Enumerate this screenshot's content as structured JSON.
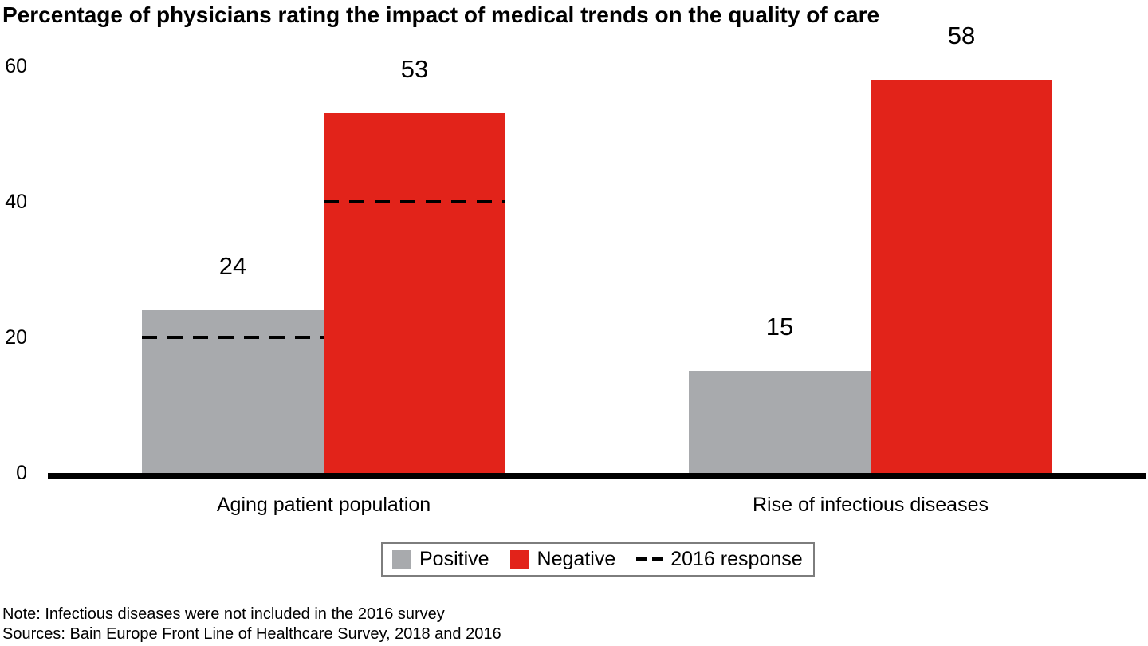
{
  "title": "Percentage of physicians rating the impact of medical trends on the quality of care",
  "colors": {
    "positive": "#a8aaad",
    "negative": "#e2231a",
    "dash": "#000000",
    "axis": "#000000",
    "legend_border": "#7d7d7d"
  },
  "legend": {
    "items": [
      {
        "type": "swatch",
        "color_key": "positive",
        "label": "Positive"
      },
      {
        "type": "swatch",
        "color_key": "negative",
        "label": "Negative"
      },
      {
        "type": "dash",
        "label": "2016 response"
      }
    ]
  },
  "notes": [
    "Note: Infectious diseases were not included in the 2016 survey",
    "Sources: Bain Europe Front Line of Healthcare Survey, 2018 and 2016"
  ],
  "chart_data": {
    "type": "bar",
    "title": "Percentage of physicians rating the impact of medical trends on the quality of care",
    "categories": [
      "Aging patient population",
      "Rise of infectious diseases"
    ],
    "series": [
      {
        "name": "Positive",
        "color": "#a8aaad",
        "values": [
          24,
          15
        ]
      },
      {
        "name": "Negative",
        "color": "#e2231a",
        "values": [
          53,
          58
        ]
      }
    ],
    "overlay_series": {
      "name": "2016 response",
      "style": "dashed",
      "values": [
        [
          20,
          40
        ],
        [
          null,
          null
        ]
      ]
    },
    "unit": "percent",
    "xlabel": "",
    "ylabel": "",
    "yticks": [
      0,
      20,
      40,
      60
    ],
    "ylim": [
      0,
      60
    ],
    "grid": false,
    "legend_position": "bottom"
  }
}
